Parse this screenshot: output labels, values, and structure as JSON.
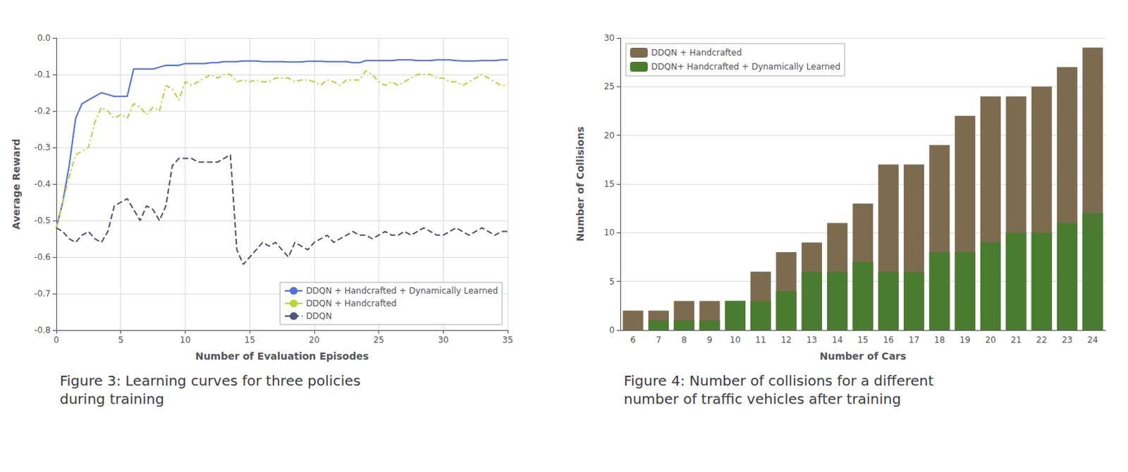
{
  "chart_data": [
    {
      "type": "line",
      "title": "Figure 3: Learning curves for three policies\nduring training",
      "x_label": "Number of Evaluation Episodes",
      "y_label": "Average Reward",
      "x": [
        0,
        0.5,
        1,
        1.5,
        2,
        2.5,
        3,
        3.5,
        4,
        4.5,
        5,
        5.5,
        6,
        6.5,
        7,
        7.5,
        8,
        8.5,
        9,
        9.5,
        10,
        10.5,
        11,
        11.5,
        12,
        12.5,
        13,
        13.5,
        14,
        14.5,
        15,
        15.5,
        16,
        16.5,
        17,
        17.5,
        18,
        18.5,
        19,
        19.5,
        20,
        20.5,
        21,
        21.5,
        22,
        22.5,
        23,
        23.5,
        24,
        24.5,
        25,
        25.5,
        26,
        26.5,
        27,
        27.5,
        28,
        28.5,
        29,
        29.5,
        30,
        30.5,
        31,
        31.5,
        32,
        32.5,
        33,
        33.5,
        34,
        34.5,
        35
      ],
      "series": [
        {
          "name": "DDQN + Handcrafted + Dynamically Learned",
          "line_style": "solid",
          "values": [
            -0.52,
            -0.45,
            -0.35,
            -0.22,
            -0.18,
            -0.17,
            -0.16,
            -0.15,
            -0.155,
            -0.16,
            -0.16,
            -0.16,
            -0.085,
            -0.085,
            -0.085,
            -0.085,
            -0.08,
            -0.075,
            -0.075,
            -0.075,
            -0.07,
            -0.07,
            -0.07,
            -0.07,
            -0.068,
            -0.068,
            -0.065,
            -0.065,
            -0.065,
            -0.063,
            -0.063,
            -0.063,
            -0.065,
            -0.065,
            -0.065,
            -0.065,
            -0.066,
            -0.066,
            -0.066,
            -0.064,
            -0.064,
            -0.064,
            -0.065,
            -0.065,
            -0.065,
            -0.065,
            -0.068,
            -0.068,
            -0.062,
            -0.062,
            -0.062,
            -0.062,
            -0.062,
            -0.06,
            -0.06,
            -0.06,
            -0.062,
            -0.062,
            -0.062,
            -0.06,
            -0.06,
            -0.06,
            -0.062,
            -0.063,
            -0.063,
            -0.063,
            -0.062,
            -0.062,
            -0.062,
            -0.06,
            -0.06
          ]
        },
        {
          "name": "DDQN + Handcrafted",
          "line_style": "dashdot",
          "values": [
            -0.52,
            -0.45,
            -0.38,
            -0.32,
            -0.31,
            -0.3,
            -0.23,
            -0.19,
            -0.2,
            -0.22,
            -0.21,
            -0.22,
            -0.18,
            -0.19,
            -0.21,
            -0.19,
            -0.2,
            -0.13,
            -0.14,
            -0.17,
            -0.12,
            -0.13,
            -0.12,
            -0.11,
            -0.1,
            -0.11,
            -0.1,
            -0.1,
            -0.12,
            -0.115,
            -0.12,
            -0.115,
            -0.12,
            -0.12,
            -0.11,
            -0.11,
            -0.11,
            -0.12,
            -0.115,
            -0.115,
            -0.12,
            -0.13,
            -0.115,
            -0.12,
            -0.13,
            -0.115,
            -0.115,
            -0.115,
            -0.09,
            -0.1,
            -0.12,
            -0.13,
            -0.12,
            -0.13,
            -0.12,
            -0.11,
            -0.1,
            -0.1,
            -0.1,
            -0.11,
            -0.11,
            -0.12,
            -0.12,
            -0.13,
            -0.12,
            -0.11,
            -0.1,
            -0.11,
            -0.12,
            -0.13,
            -0.13
          ]
        },
        {
          "name": "DDQN",
          "line_style": "dashed",
          "values": [
            -0.52,
            -0.53,
            -0.55,
            -0.56,
            -0.54,
            -0.53,
            -0.55,
            -0.56,
            -0.53,
            -0.46,
            -0.45,
            -0.44,
            -0.47,
            -0.5,
            -0.46,
            -0.47,
            -0.5,
            -0.46,
            -0.35,
            -0.33,
            -0.33,
            -0.33,
            -0.34,
            -0.34,
            -0.34,
            -0.34,
            -0.33,
            -0.32,
            -0.58,
            -0.62,
            -0.6,
            -0.58,
            -0.56,
            -0.57,
            -0.56,
            -0.58,
            -0.6,
            -0.56,
            -0.57,
            -0.58,
            -0.56,
            -0.55,
            -0.54,
            -0.56,
            -0.55,
            -0.54,
            -0.53,
            -0.54,
            -0.54,
            -0.55,
            -0.54,
            -0.53,
            -0.54,
            -0.54,
            -0.53,
            -0.54,
            -0.53,
            -0.52,
            -0.53,
            -0.54,
            -0.54,
            -0.53,
            -0.52,
            -0.53,
            -0.54,
            -0.53,
            -0.52,
            -0.53,
            -0.54,
            -0.53,
            -0.53
          ]
        }
      ],
      "xlim": [
        0,
        35
      ],
      "ylim": [
        -0.8,
        0.0
      ],
      "xticks": [
        0,
        5,
        10,
        15,
        20,
        25,
        30,
        35
      ],
      "yticks": [
        {
          "value": 0,
          "label": "0.0"
        },
        -0.1,
        -0.2,
        -0.3,
        -0.4,
        -0.5,
        -0.6,
        -0.7,
        -0.8
      ],
      "grid": true,
      "legend": "lower right"
    },
    {
      "type": "bar",
      "title": "Figure 4: Number of collisions for a different\nnumber of traffic vehicles after training",
      "x_label": "Number of Cars",
      "y_label": "Number of Collisions",
      "categories": [
        6,
        7,
        8,
        9,
        10,
        11,
        12,
        13,
        14,
        15,
        16,
        17,
        18,
        19,
        20,
        21,
        22,
        23,
        24
      ],
      "series": [
        {
          "name": "DDQN + Handcrafted",
          "color": "#7d6b50",
          "values": [
            2,
            2,
            3,
            3,
            3,
            6,
            8,
            9,
            11,
            13,
            17,
            17,
            19,
            22,
            24,
            24,
            25,
            27,
            29
          ]
        },
        {
          "name": "DDQN+ Handcrafted + Dynamically Learned",
          "color": "#4a7c2f",
          "values": [
            0,
            1,
            1,
            1,
            3,
            3,
            4,
            6,
            6,
            7,
            6,
            6,
            8,
            8,
            9,
            10,
            10,
            11,
            12
          ]
        }
      ],
      "ylim": [
        0,
        30
      ],
      "yticks": [
        0,
        5,
        10,
        15,
        20,
        25,
        30
      ],
      "grid": "y",
      "legend": "upper left"
    }
  ]
}
